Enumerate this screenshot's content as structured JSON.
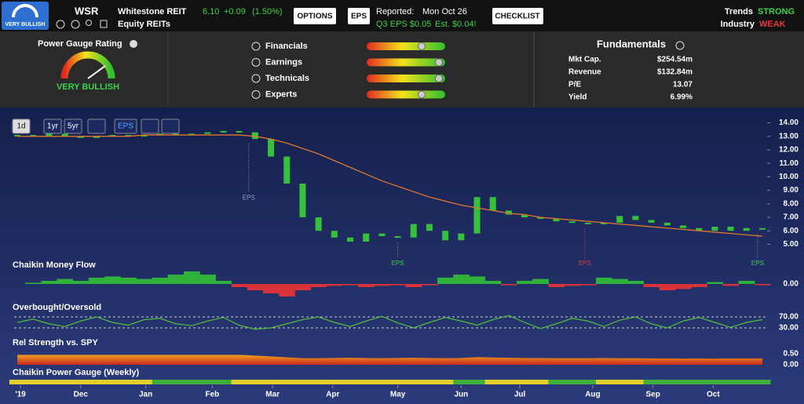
{
  "header": {
    "badge": "VERY BULLISH",
    "symbol": "WSR",
    "company": "Whitestone REIT",
    "price": "6.10",
    "change": "+0.09",
    "change_pct": "(1.50%)",
    "industry": "Equity REITs",
    "options": "OPTIONS",
    "eps_badge": "EPS",
    "reported_label": "Reported:",
    "reported_date": "Mon Oct 26",
    "eps_actual": "Q3 EPS $0.05",
    "eps_est": "Est. $0.04!",
    "checklist": "CHECKLIST",
    "trends_label": "Trends",
    "trends_value": "STRONG",
    "industry_label": "Industry",
    "industry_value": "WEAK"
  },
  "gauge": {
    "title": "Power Gauge Rating",
    "rating": "VERY BULLISH",
    "factors": [
      {
        "label": "Financials",
        "value": 70
      },
      {
        "label": "Earnings",
        "value": 92
      },
      {
        "label": "Technicals",
        "value": 92
      },
      {
        "label": "Experts",
        "value": 70
      }
    ]
  },
  "fundamentals": {
    "title": "Fundamentals",
    "rows": [
      [
        "Mkt Cap.",
        "$254.54m"
      ],
      [
        "Revenue",
        "$132.84m"
      ],
      [
        "P/E",
        "13.07"
      ],
      [
        "Yield",
        "6.99%"
      ]
    ]
  },
  "toolbar": [
    "1d",
    "1yr",
    "5yr",
    "EPS"
  ],
  "chart_data": {
    "type": "stock",
    "x": [
      0,
      1,
      2,
      3,
      4,
      5,
      6,
      7,
      8,
      9,
      10,
      11,
      12,
      13,
      14,
      15,
      16,
      17,
      18,
      19,
      20,
      21,
      22,
      23,
      24,
      25,
      26,
      27,
      28,
      29,
      30,
      31,
      32,
      33,
      34,
      35,
      36,
      37,
      38,
      39,
      40,
      41,
      42,
      43,
      44,
      45,
      46,
      47
    ],
    "xlim": [
      -0.2,
      47.2
    ],
    "xticks": [
      {
        "value": 0.2,
        "label": "'19"
      },
      {
        "value": 4.0,
        "label": "Dec"
      },
      {
        "value": 8.1,
        "label": "Jan"
      },
      {
        "value": 12.3,
        "label": "Feb"
      },
      {
        "value": 16.1,
        "label": "Mar"
      },
      {
        "value": 19.9,
        "label": "Apr"
      },
      {
        "value": 24.0,
        "label": "May"
      },
      {
        "value": 28.0,
        "label": "Jun"
      },
      {
        "value": 31.7,
        "label": "Jul"
      },
      {
        "value": 36.3,
        "label": "Aug"
      },
      {
        "value": 40.1,
        "label": "Sep"
      },
      {
        "value": 43.9,
        "label": "Oct"
      }
    ],
    "price": {
      "close": [
        13.1,
        13.0,
        13.2,
        13.0,
        12.9,
        13.0,
        13.1,
        13.0,
        13.1,
        13.2,
        13.1,
        13.2,
        13.3,
        13.4,
        13.3,
        12.8,
        11.5,
        9.5,
        7.0,
        6.0,
        5.5,
        5.2,
        5.8,
        5.6,
        5.5,
        6.5,
        6.0,
        5.3,
        5.8,
        8.5,
        7.5,
        7.2,
        7.0,
        6.9,
        6.7,
        6.6,
        6.5,
        6.6,
        7.1,
        6.8,
        6.6,
        6.4,
        6.2,
        6.0,
        6.3,
        6.0,
        6.2,
        6.1
      ],
      "ma": [
        13.0,
        13.0,
        13.0,
        13.0,
        13.0,
        13.0,
        13.0,
        13.0,
        13.1,
        13.1,
        13.1,
        13.1,
        13.1,
        13.1,
        13.1,
        13.0,
        12.8,
        12.5,
        12.1,
        11.7,
        11.2,
        10.7,
        10.2,
        9.7,
        9.3,
        8.9,
        8.5,
        8.2,
        7.9,
        7.7,
        7.5,
        7.3,
        7.2,
        7.0,
        6.9,
        6.8,
        6.7,
        6.6,
        6.5,
        6.4,
        6.3,
        6.2,
        6.1,
        6.0,
        5.9,
        5.8,
        5.7,
        5.6
      ],
      "ylim": [
        4.5,
        14.5
      ],
      "yticks": [
        {
          "value": 5,
          "label": "5.00"
        },
        {
          "value": 6,
          "label": "6.00"
        },
        {
          "value": 7,
          "label": "7.00"
        },
        {
          "value": 8,
          "label": "8.00"
        },
        {
          "value": 9,
          "label": "9.00"
        },
        {
          "value": 10,
          "label": "10.00"
        },
        {
          "value": 11,
          "label": "11.00"
        },
        {
          "value": 12,
          "label": "12.00"
        },
        {
          "value": 13,
          "label": "13.00"
        },
        {
          "value": 14,
          "label": "14.00"
        }
      ],
      "color": "#35c23a",
      "ma_color": "#e0782c"
    },
    "eps": [
      {
        "x": 14.6,
        "label": "EPS",
        "color": "#9aa3b5"
      },
      {
        "x": 24.0,
        "label": "EPS",
        "color": "#3fd14a"
      },
      {
        "x": 35.8,
        "label": "EPS",
        "color": "#e03a3a"
      },
      {
        "x": 46.7,
        "label": "EPS",
        "color": "#3fd14a"
      }
    ],
    "cmf": {
      "title": "Chaikin Money Flow",
      "values": [
        0,
        0.02,
        0.05,
        0.08,
        0.05,
        0.1,
        0.12,
        0.1,
        0.08,
        0.1,
        0.15,
        0.2,
        0.15,
        0.05,
        -0.05,
        -0.1,
        -0.15,
        -0.2,
        -0.1,
        -0.05,
        -0.03,
        -0.02,
        -0.05,
        -0.03,
        -0.02,
        -0.05,
        -0.02,
        0.1,
        0.15,
        0.12,
        0.05,
        -0.02,
        0.05,
        0.08,
        -0.05,
        -0.03,
        -0.02,
        0.1,
        0.08,
        0.05,
        -0.05,
        -0.1,
        -0.08,
        -0.05,
        0.03,
        -0.03,
        0.05,
        -0.02
      ],
      "ylim": [
        -0.3,
        0.3
      ],
      "yticks": [
        {
          "value": 0,
          "label": "0.00"
        }
      ],
      "pos_color": "#2fb13a",
      "neg_color": "#d8333a"
    },
    "oscillator": {
      "title": "Overbought/Oversold",
      "values": [
        50,
        62,
        45,
        35,
        55,
        70,
        50,
        40,
        60,
        65,
        45,
        38,
        55,
        68,
        40,
        25,
        30,
        45,
        60,
        70,
        50,
        35,
        55,
        72,
        48,
        30,
        50,
        68,
        55,
        40,
        60,
        75,
        50,
        28,
        45,
        65,
        55,
        35,
        58,
        70,
        45,
        30,
        55,
        68,
        50,
        32,
        50,
        60
      ],
      "ylim": [
        0,
        100
      ],
      "yticks": [
        {
          "value": 70,
          "label": "70.00"
        },
        {
          "value": 30,
          "label": "30.00"
        }
      ],
      "color": "#4fbf3a"
    },
    "rel_strength": {
      "title": "Rel Strength vs. SPY",
      "values": [
        0.45,
        0.45,
        0.45,
        0.45,
        0.45,
        0.45,
        0.45,
        0.45,
        0.45,
        0.45,
        0.45,
        0.45,
        0.45,
        0.45,
        0.45,
        0.42,
        0.38,
        0.34,
        0.3,
        0.3,
        0.31,
        0.32,
        0.31,
        0.3,
        0.31,
        0.32,
        0.31,
        0.3,
        0.31,
        0.35,
        0.33,
        0.32,
        0.31,
        0.31,
        0.3,
        0.3,
        0.3,
        0.31,
        0.3,
        0.3,
        0.29,
        0.29,
        0.28,
        0.29,
        0.28,
        0.29,
        0.29,
        0.29
      ],
      "ylim": [
        0,
        0.5
      ],
      "yticks": [
        {
          "value": 0.5,
          "label": "0.50"
        },
        {
          "value": 0,
          "label": "0.00"
        }
      ]
    },
    "power_gauge": {
      "title": "Chaikin Power Gauge (Weekly)",
      "colors": [
        "#e3cf2b",
        "#e3cf2b",
        "#e3cf2b",
        "#e3cf2b",
        "#e3cf2b",
        "#e3cf2b",
        "#e3cf2b",
        "#e3cf2b",
        "#e3cf2b",
        "#3fae3f",
        "#3fae3f",
        "#3fae3f",
        "#3fae3f",
        "#3fae3f",
        "#e3cf2b",
        "#e3cf2b",
        "#e3cf2b",
        "#e3cf2b",
        "#e3cf2b",
        "#e3cf2b",
        "#e3cf2b",
        "#e3cf2b",
        "#e3cf2b",
        "#e3cf2b",
        "#e3cf2b",
        "#e3cf2b",
        "#e3cf2b",
        "#e3cf2b",
        "#3fae3f",
        "#3fae3f",
        "#e3cf2b",
        "#e3cf2b",
        "#e3cf2b",
        "#e3cf2b",
        "#3fae3f",
        "#3fae3f",
        "#3fae3f",
        "#e3cf2b",
        "#e3cf2b",
        "#e3cf2b",
        "#3fae3f",
        "#3fae3f",
        "#3fae3f",
        "#3fae3f",
        "#3fae3f",
        "#3fae3f",
        "#3fae3f",
        "#3fae3f"
      ]
    }
  }
}
